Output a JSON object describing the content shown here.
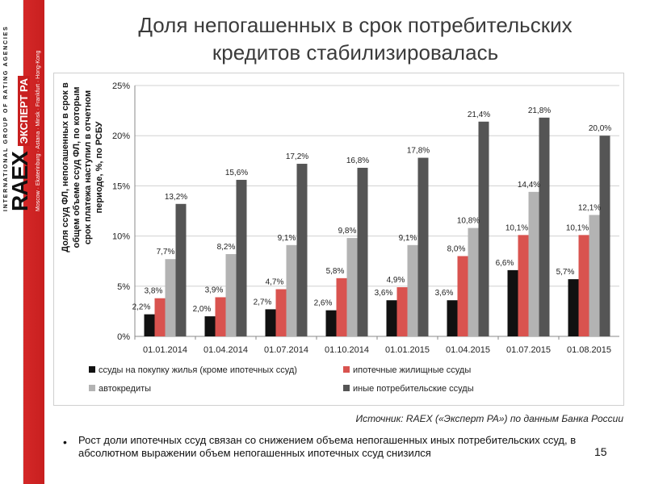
{
  "sidebar": {
    "group_text": "INTERNATIONAL GROUP OF RATING AGENCIES",
    "brand": "RAEX",
    "brand_sub": "ЭКСПЕРТ РА",
    "cities": "Moscow · Ekaterinburg · Astana · Minsk · Frankfurt · Hong-Kong",
    "colors": {
      "red": "#d92b2b"
    }
  },
  "title": {
    "line1": "Доля непогашенных в срок потребительских",
    "line2": "кредитов стабилизировалась"
  },
  "chart_data": {
    "type": "bar",
    "ylabel": "Доля ссуд ФЛ, непогашенных в срок в общем объеме ссуд ФЛ, по которым срок платежа наступил в отчетном периоде, %, по РСБУ",
    "ylim": [
      0,
      25
    ],
    "yticks": [
      "0%",
      "5%",
      "10%",
      "15%",
      "20%",
      "25%"
    ],
    "grid": true,
    "legend_position": "bottom",
    "categories": [
      "01.01.2014",
      "01.04.2014",
      "01.07.2014",
      "01.10.2014",
      "01.01.2015",
      "01.04.2015",
      "01.07.2015",
      "01.08.2015"
    ],
    "series": [
      {
        "name": "ссуды на покупку жилья (кроме ипотечных ссуд)",
        "color": "#111111",
        "values": [
          2.2,
          2.0,
          2.7,
          2.6,
          3.6,
          3.6,
          6.6,
          5.7
        ],
        "labels": [
          "2,2%",
          "2,0%",
          "2,7%",
          "2,6%",
          "3,6%",
          "3,6%",
          "6,6%",
          "5,7%"
        ]
      },
      {
        "name": "ипотечные жилищные ссуды",
        "color": "#d9534f",
        "values": [
          3.8,
          3.9,
          4.7,
          5.8,
          4.9,
          8.0,
          10.1,
          10.1
        ],
        "labels": [
          "3,8%",
          "3,9%",
          "4,7%",
          "5,8%",
          "4,9%",
          "8,0%",
          "10,1%",
          "10,1%"
        ]
      },
      {
        "name": "автокредиты",
        "color": "#b3b3b3",
        "values": [
          7.7,
          8.2,
          9.1,
          9.8,
          9.1,
          10.8,
          14.4,
          12.1
        ],
        "labels": [
          "7,7%",
          "8,2%",
          "9,1%",
          "9,8%",
          "9,1%",
          "10,8%",
          "14,4%",
          "12,1%"
        ]
      },
      {
        "name": "иные потребительские ссуды",
        "color": "#555555",
        "values": [
          13.2,
          15.6,
          17.2,
          16.8,
          17.8,
          21.4,
          21.8,
          20.0
        ],
        "labels": [
          "13,2%",
          "15,6%",
          "17,2%",
          "16,8%",
          "17,8%",
          "21,4%",
          "21,8%",
          "20,0%"
        ]
      }
    ]
  },
  "source": "Источник: RAEX («Эксперт РА») по данным Банка России",
  "bullet": "Рост доли ипотечных ссуд связан со снижением объема непогашенных иных потребительских ссуд, в абсолютном выражении объем непогашенных ипотечных ссуд снизился",
  "page_number": "15"
}
